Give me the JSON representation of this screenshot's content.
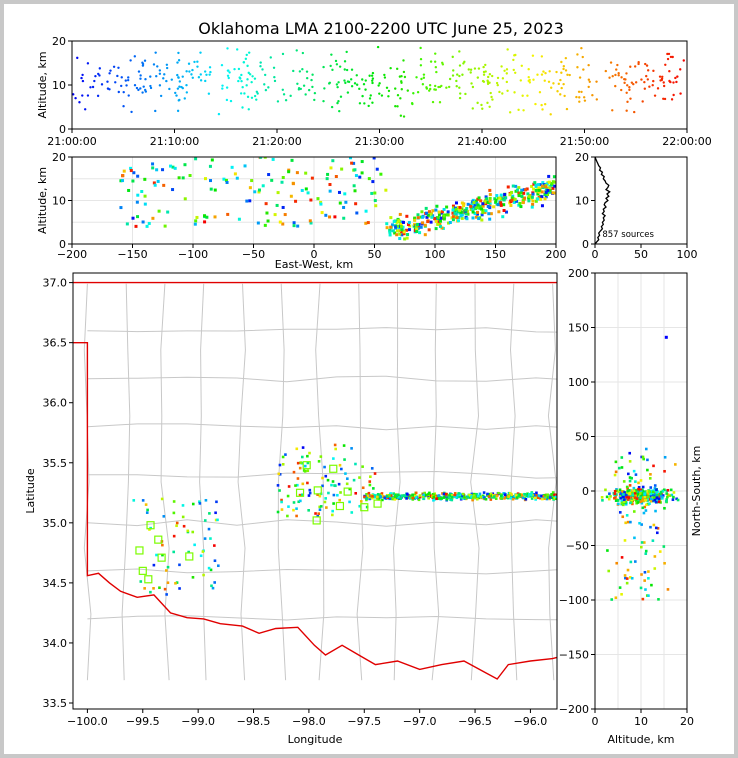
{
  "title": "Oklahoma LMA 2100-2200 UTC June 25, 2023",
  "source_count_label": "857 sources",
  "colors": {
    "state_border": "#e00000",
    "county_lines": "#c8c8c8",
    "station_marker": "#7cfc00",
    "colormap": "rainbow (blue→red by time)"
  },
  "chart_data": [
    {
      "name": "time-altitude",
      "type": "scatter",
      "xlabel": "",
      "ylabel": "Altitude, km",
      "xlim": [
        "21:00:00",
        "22:00:00"
      ],
      "ylim": [
        0,
        20
      ],
      "x_ticks": [
        "21:00:00",
        "21:10:00",
        "21:20:00",
        "21:30:00",
        "21:40:00",
        "21:50:00",
        "22:00:00"
      ],
      "y_ticks": [
        "0",
        "10",
        "20"
      ],
      "color_by": "time"
    },
    {
      "name": "eastwest-altitude",
      "type": "scatter",
      "xlabel": "East-West, km",
      "ylabel": "Altitude, km",
      "xlim": [
        -200,
        200
      ],
      "ylim": [
        0,
        20
      ],
      "x_ticks": [
        "−200",
        "−150",
        "−100",
        "−50",
        "0",
        "50",
        "100",
        "150",
        "200"
      ],
      "y_ticks": [
        "0",
        "10",
        "20"
      ],
      "color_by": "time"
    },
    {
      "name": "altitude-histogram",
      "type": "line",
      "xlabel": "",
      "ylabel": "",
      "xlim": [
        0,
        100
      ],
      "ylim": [
        0,
        20
      ],
      "x_ticks": [
        "0",
        "50",
        "100"
      ],
      "y_ticks": [
        "0",
        "10",
        "20"
      ],
      "profile": [
        [
          0,
          0
        ],
        [
          2,
          0.5
        ],
        [
          4,
          1
        ],
        [
          3,
          1.5
        ],
        [
          5,
          2
        ],
        [
          4,
          2.5
        ],
        [
          6,
          3
        ],
        [
          8,
          3.5
        ],
        [
          7,
          4
        ],
        [
          9,
          4.5
        ],
        [
          8,
          5
        ],
        [
          10,
          5.5
        ],
        [
          9,
          6
        ],
        [
          11,
          6.5
        ],
        [
          8,
          7
        ],
        [
          10,
          7.5
        ],
        [
          9,
          8
        ],
        [
          12,
          8.5
        ],
        [
          10,
          9
        ],
        [
          11,
          9.5
        ],
        [
          14,
          10
        ],
        [
          12,
          10.5
        ],
        [
          15,
          11
        ],
        [
          13,
          11.5
        ],
        [
          16,
          12
        ],
        [
          12,
          12.5
        ],
        [
          14,
          13
        ],
        [
          15,
          13.5
        ],
        [
          12,
          14
        ],
        [
          11,
          14.5
        ],
        [
          9,
          15
        ],
        [
          10,
          15.5
        ],
        [
          7,
          16
        ],
        [
          8,
          16.5
        ],
        [
          5,
          17
        ],
        [
          6,
          17.5
        ],
        [
          4,
          18
        ],
        [
          3,
          18.5
        ],
        [
          2,
          19
        ],
        [
          1,
          19.5
        ],
        [
          0,
          20
        ]
      ]
    },
    {
      "name": "plan-view",
      "type": "scatter",
      "xlabel": "Longitude",
      "ylabel": "Latitude",
      "xlim": [
        -100.13,
        -95.76
      ],
      "ylim": [
        33.45,
        37.08
      ],
      "x_ticks": [
        "−100.0",
        "−99.5",
        "−99.0",
        "−98.5",
        "−98.0",
        "−97.5",
        "−97.0",
        "−96.5",
        "−96.0"
      ],
      "y_ticks": [
        "33.5",
        "34.0",
        "34.5",
        "35.0",
        "35.5",
        "36.0",
        "36.5",
        "37.0"
      ],
      "stations": [
        [
          -99.43,
          34.98
        ],
        [
          -99.36,
          34.86
        ],
        [
          -99.53,
          34.77
        ],
        [
          -99.33,
          34.71
        ],
        [
          -99.08,
          34.72
        ],
        [
          -99.5,
          34.6
        ],
        [
          -99.45,
          34.53
        ],
        [
          -98.08,
          35.25
        ],
        [
          -98.02,
          35.48
        ],
        [
          -97.92,
          35.27
        ],
        [
          -97.78,
          35.45
        ],
        [
          -97.72,
          35.14
        ],
        [
          -97.65,
          35.26
        ],
        [
          -97.5,
          35.13
        ],
        [
          -97.93,
          35.02
        ],
        [
          -97.38,
          35.16
        ]
      ]
    },
    {
      "name": "altitude-northsouth",
      "type": "scatter",
      "xlabel": "Altitude, km",
      "ylabel": "North-South, km",
      "xlim": [
        0,
        20
      ],
      "ylim": [
        -200,
        200
      ],
      "x_ticks": [
        "0",
        "10",
        "20"
      ],
      "y_ticks": [
        "−200",
        "−150",
        "−100",
        "−50",
        "0",
        "50",
        "100",
        "150",
        "200"
      ],
      "color_by": "time"
    }
  ]
}
